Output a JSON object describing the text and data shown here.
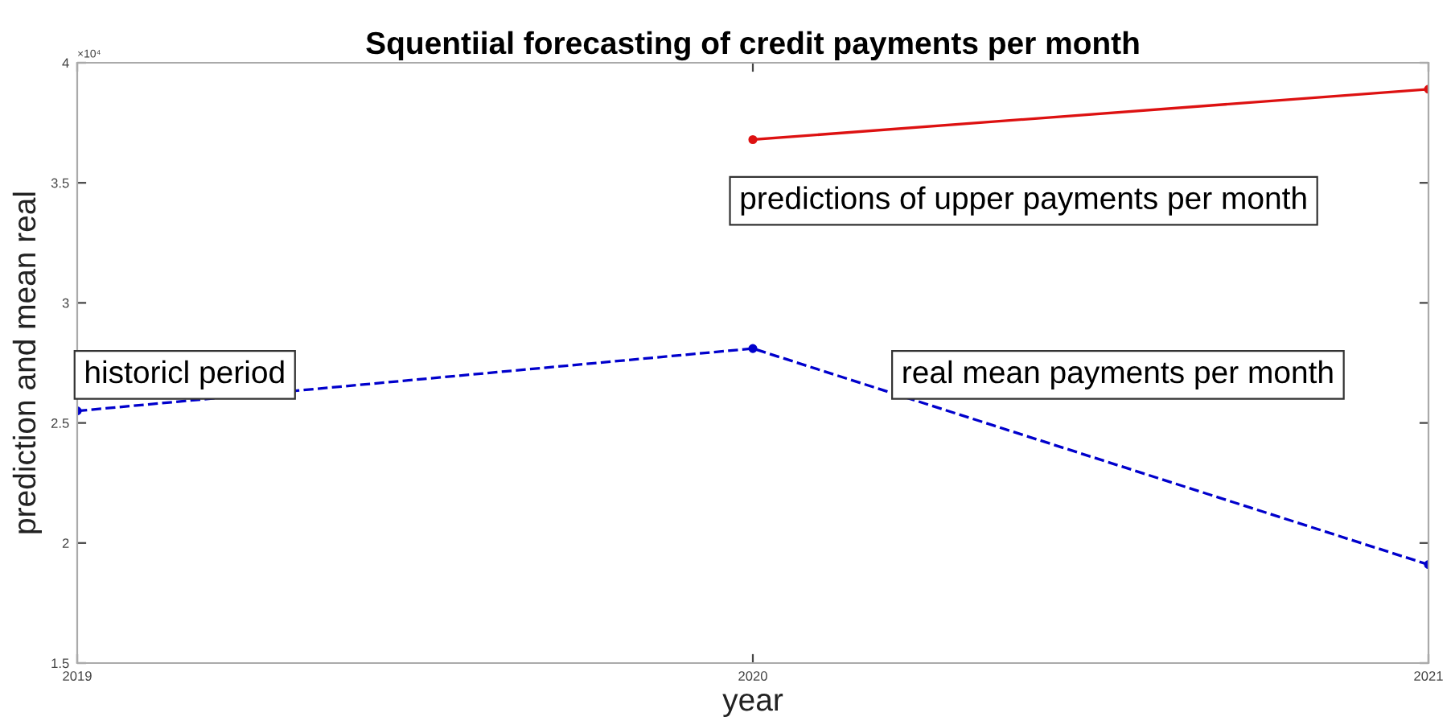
{
  "chart_data": {
    "type": "line",
    "title": "Squentiial forecasting of credit payments per month",
    "xlabel": "year",
    "ylabel": "prediction and mean real",
    "x": [
      2019,
      2020,
      2021
    ],
    "series": [
      {
        "color": "#0000cc",
        "values": [
          2.55,
          2.81,
          1.91
        ],
        "line_style": "dashed"
      },
      {
        "color": "#dd1111",
        "values": [
          null,
          3.68,
          3.89
        ],
        "line_style": "solid"
      }
    ],
    "xlim": [
      2019,
      2021
    ],
    "xticks": [
      2019,
      2020,
      2021
    ],
    "ylim": [
      1.5,
      4
    ],
    "yticks": [
      1.5,
      2,
      2.5,
      3,
      3.5,
      4
    ],
    "annotations": [
      "×10⁴",
      "historicl period",
      "real mean payments per month",
      "predictions of upper payments per month"
    ],
    "marker": "circle",
    "grid": false,
    "legend": false
  }
}
